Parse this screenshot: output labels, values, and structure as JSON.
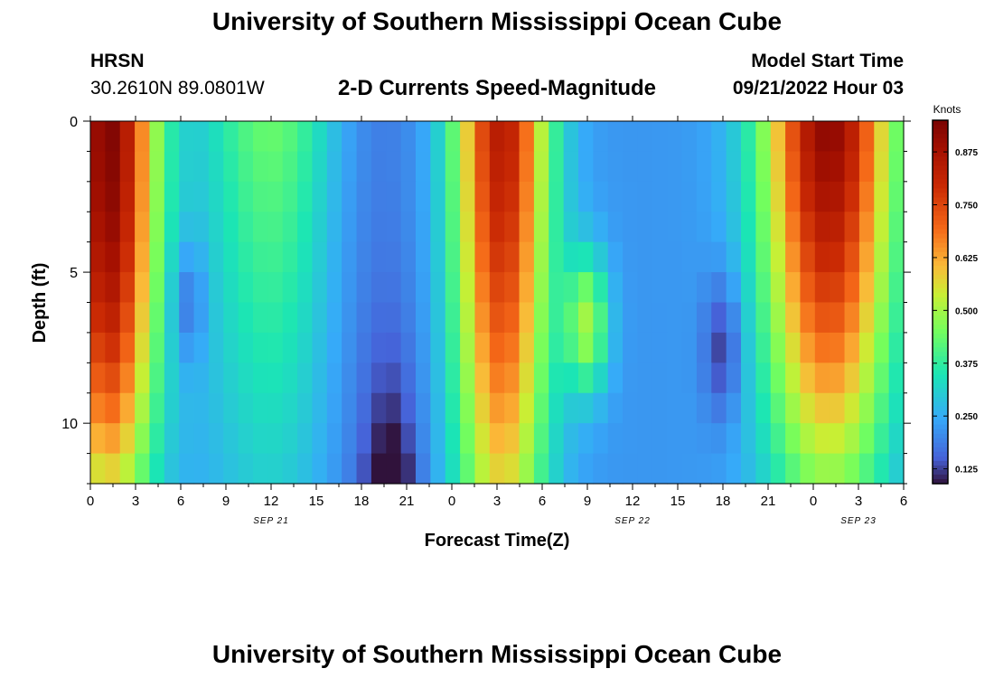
{
  "header": {
    "title": "University of Southern Mississippi Ocean Cube",
    "station": "HRSN",
    "coordinates": "30.2610N  89.0801W",
    "subtitle": "2-D Currents Speed-Magnitude",
    "model_start_label": "Model Start Time",
    "model_start_value": "09/21/2022 Hour 03"
  },
  "footer": {
    "title": "University of Southern Mississippi Ocean Cube"
  },
  "chart_data": {
    "type": "heatmap",
    "title": "2-D Currents Speed-Magnitude",
    "xlabel": "Forecast Time(Z)",
    "ylabel": "Depth (ft)",
    "x_range_hours": [
      0,
      54
    ],
    "y_range_ft": [
      0,
      12
    ],
    "x_tick_labels": [
      "0",
      "3",
      "6",
      "9",
      "12",
      "15",
      "18",
      "21",
      "0",
      "3",
      "6",
      "9",
      "12",
      "15",
      "18",
      "21",
      "0",
      "3",
      "6"
    ],
    "y_ticks": [
      0,
      5,
      10
    ],
    "date_labels": [
      {
        "text": "SEP 21",
        "hour": 12
      },
      {
        "text": "SEP 22",
        "hour": 36
      },
      {
        "text": "SEP 23",
        "hour": 51
      }
    ],
    "colorbar": {
      "title": "Knots",
      "min": 0.09,
      "max": 0.95,
      "tick_labels": [
        "0.875",
        "0.750",
        "0.625",
        "0.500",
        "0.375",
        "0.250",
        "0.125"
      ],
      "tick_values": [
        0.875,
        0.75,
        0.625,
        0.5,
        0.375,
        0.25,
        0.125
      ]
    },
    "n_time_steps": 55,
    "n_depth_levels": 12
  }
}
